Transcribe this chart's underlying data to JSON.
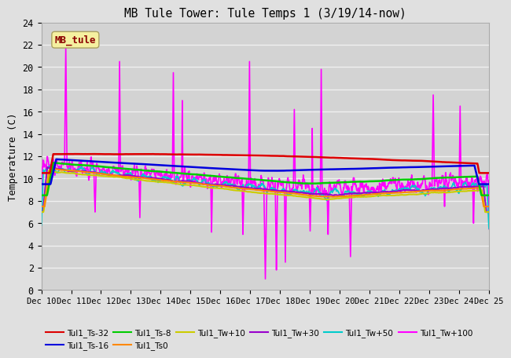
{
  "title": "MB Tule Tower: Tule Temps 1 (3/19/14-now)",
  "ylabel": "Temperature (C)",
  "ylim": [
    0,
    24
  ],
  "yticks": [
    0,
    2,
    4,
    6,
    8,
    10,
    12,
    14,
    16,
    18,
    20,
    22,
    24
  ],
  "xtick_labels": [
    "Dec 10",
    "Dec 11",
    "Dec 12",
    "Dec 13",
    "Dec 14",
    "Dec 15",
    "Dec 16",
    "Dec 17",
    "Dec 18",
    "Dec 19",
    "Dec 20",
    "Dec 21",
    "Dec 22",
    "Dec 23",
    "Dec 24",
    "Dec 25"
  ],
  "fig_bg": "#e0e0e0",
  "plot_bg": "#d3d3d3",
  "grid_color": "#f0f0f0",
  "watermark_text": "MB_tule",
  "watermark_color": "#8b0000",
  "watermark_bg": "#f5f0a0",
  "legend_entries": [
    {
      "label": "Tul1_Ts-32",
      "color": "#dd0000"
    },
    {
      "label": "Tul1_Ts-16",
      "color": "#0000dd"
    },
    {
      "label": "Tul1_Ts-8",
      "color": "#00cc00"
    },
    {
      "label": "Tul1_Ts0",
      "color": "#ff8800"
    },
    {
      "label": "Tul1_Tw+10",
      "color": "#cccc00"
    },
    {
      "label": "Tul1_Tw+30",
      "color": "#9900cc"
    },
    {
      "label": "Tul1_Tw+50",
      "color": "#00cccc"
    },
    {
      "label": "Tul1_Tw+100",
      "color": "#ff00ff"
    }
  ]
}
